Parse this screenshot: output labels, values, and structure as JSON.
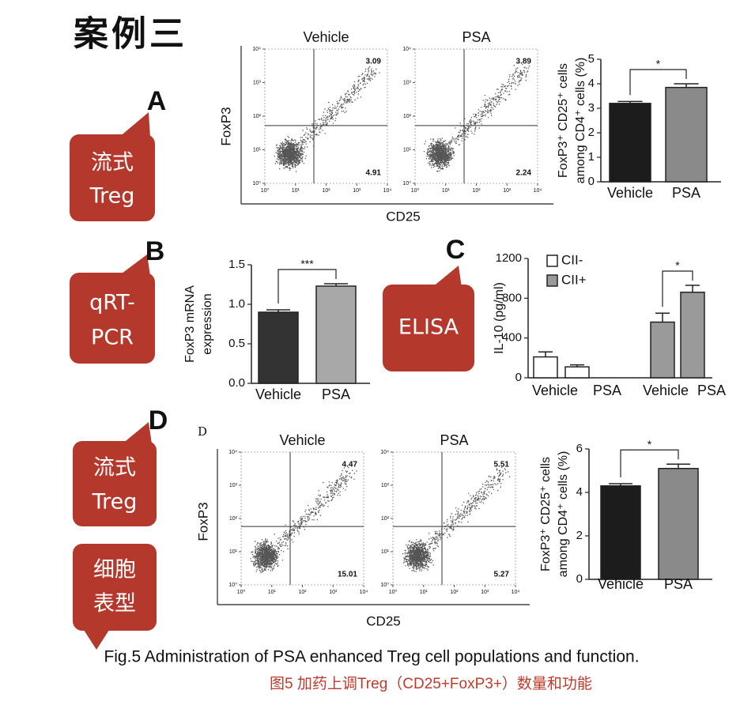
{
  "title": "案例三",
  "panel_letters": [
    "A",
    "B",
    "C",
    "D"
  ],
  "callouts": [
    [
      "流式",
      "Treg"
    ],
    [
      "qRT-",
      "PCR"
    ],
    [
      "ELISA"
    ],
    [
      "流式",
      "Treg"
    ],
    [
      "细胞",
      "表型"
    ]
  ],
  "chart_data": [
    {
      "type": "flow",
      "xlabel": "CD25",
      "ylabel": "FoxP3",
      "log": true,
      "xlim": [
        1,
        10000
      ],
      "ylim": [
        1,
        10000
      ],
      "xticks": [
        {
          "value": 1,
          "label": "10⁰"
        },
        {
          "value": 10,
          "label": "10¹"
        },
        {
          "value": 100,
          "label": "10²"
        },
        {
          "value": 1000,
          "label": "10³"
        },
        {
          "value": 10000,
          "label": "10⁴"
        }
      ],
      "yticks": [
        {
          "value": 1,
          "label": "10⁰"
        },
        {
          "value": 10,
          "label": "10¹"
        },
        {
          "value": 100,
          "label": "10²"
        },
        {
          "value": 1000,
          "label": "10³"
        },
        {
          "value": 10000,
          "label": "10⁴"
        }
      ],
      "plots": [
        {
          "title": "Vehicle",
          "upper_right": 3.09,
          "lower_right": 4.91
        },
        {
          "title": "PSA",
          "upper_right": 3.89,
          "lower_right": 2.24
        }
      ]
    },
    {
      "type": "flow",
      "panel_label": "D",
      "xlabel": "CD25",
      "ylabel": "FoxP3",
      "log": true,
      "xlim": [
        1,
        10000
      ],
      "ylim": [
        1,
        10000
      ],
      "xticks": [
        {
          "value": 1,
          "label": "10⁰"
        },
        {
          "value": 10,
          "label": "10¹"
        },
        {
          "value": 100,
          "label": "10²"
        },
        {
          "value": 1000,
          "label": "10³"
        },
        {
          "value": 10000,
          "label": "10⁴"
        }
      ],
      "yticks": [
        {
          "value": 1,
          "label": "10⁰"
        },
        {
          "value": 10,
          "label": "10¹"
        },
        {
          "value": 100,
          "label": "10²"
        },
        {
          "value": 1000,
          "label": "10³"
        },
        {
          "value": 10000,
          "label": "10⁴"
        }
      ],
      "plots": [
        {
          "title": "Vehicle",
          "upper_right": 4.47,
          "lower_right": 15.01
        },
        {
          "title": "PSA",
          "upper_right": 5.51,
          "lower_right": 5.27
        }
      ]
    },
    {
      "type": "bar",
      "ylabel": [
        "FoxP3⁺ CD25⁺ cells",
        "among CD4⁺ cells (%)"
      ],
      "categories": [
        "Vehicle",
        "PSA"
      ],
      "values": [
        3.2,
        3.85
      ],
      "errors": [
        0.08,
        0.15
      ],
      "colors": [
        "#1c1c1c",
        "#8a8a8a"
      ],
      "ylim": [
        0,
        5
      ],
      "yticks": [
        0,
        1,
        2,
        3,
        4,
        5
      ],
      "significance": "*"
    },
    {
      "type": "bar",
      "ylabel": [
        "FoxP3 mRNA",
        "expression"
      ],
      "categories": [
        "Vehicle",
        "PSA"
      ],
      "values": [
        0.9,
        1.23
      ],
      "errors": [
        0.03,
        0.03
      ],
      "colors": [
        "#333333",
        "#a8a8a8"
      ],
      "ylim": [
        0,
        1.5
      ],
      "yticks": [
        {
          "value": 0,
          "label": "0.0"
        },
        0.5,
        {
          "value": 1,
          "label": "1.0"
        },
        1.5
      ],
      "significance": "***"
    },
    {
      "type": "grouped_bar",
      "ylabel": "IL-10 (pg/ml)",
      "categories": [
        "Vehicle",
        "PSA"
      ],
      "series": [
        {
          "name": "CII-",
          "color": "#ffffff",
          "values": [
            210,
            110
          ],
          "errors": [
            50,
            20
          ]
        },
        {
          "name": "CII+",
          "color": "#9a9a9a",
          "values": [
            560,
            860
          ],
          "errors": [
            90,
            70
          ]
        }
      ],
      "ylim": [
        0,
        1200
      ],
      "yticks": [
        0,
        400,
        800,
        1200
      ],
      "significance": "*"
    },
    {
      "type": "bar",
      "ylabel": [
        "FoxP3⁺ CD25⁺ cells",
        "among CD4⁺ cells (%)"
      ],
      "categories": [
        "Vehicle",
        "PSA"
      ],
      "values": [
        4.3,
        5.1
      ],
      "errors": [
        0.1,
        0.2
      ],
      "colors": [
        "#1c1c1c",
        "#8a8a8a"
      ],
      "ylim": [
        0,
        6
      ],
      "yticks": [
        0,
        2,
        4,
        6
      ],
      "significance": "*"
    }
  ],
  "caption": "Fig.5 Administration of PSA enhanced Treg cell populations and function.",
  "caption_cn": "图5 加药上调Treg（CD25+FoxP3+）数量和功能"
}
